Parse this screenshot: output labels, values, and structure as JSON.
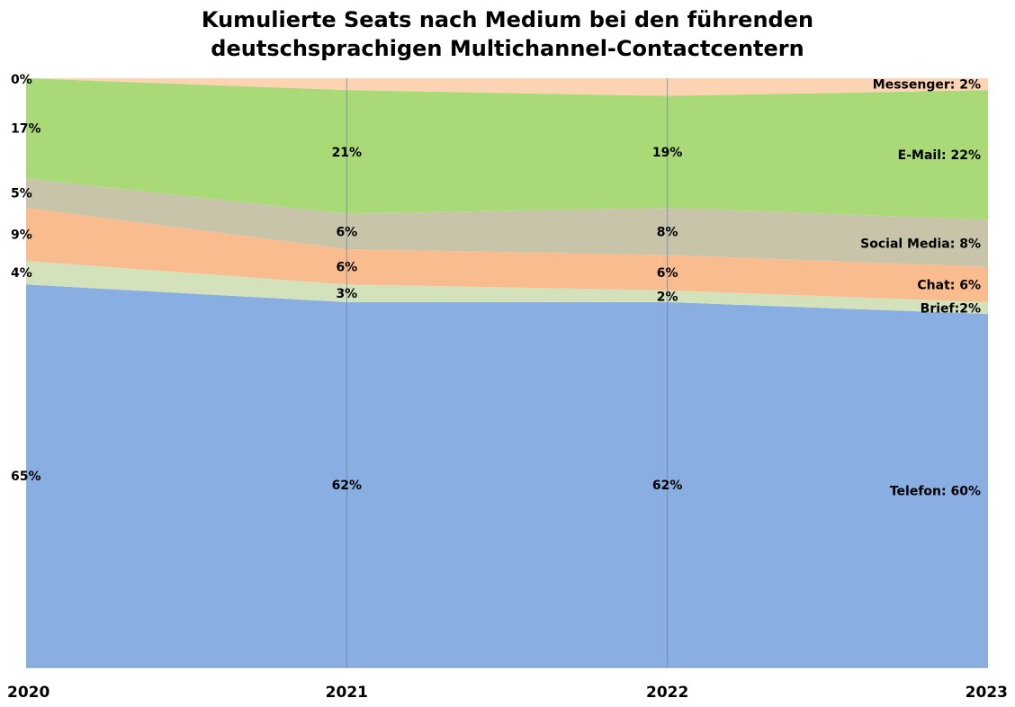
{
  "chart_data": {
    "type": "area",
    "stacked": true,
    "normalized": true,
    "title_lines": [
      "Kumulierte Seats nach Medium bei den führenden",
      "deutschsprachigen Multichannel-Contactcentern"
    ],
    "x": [
      "2020",
      "2021",
      "2022",
      "2023"
    ],
    "ylim": [
      0,
      100
    ],
    "series": [
      {
        "key": "telefon",
        "values": [
          65,
          62,
          62,
          60
        ],
        "color": "#88aee2",
        "labels": [
          "65%",
          "62%",
          "62%",
          "Telefon: 60%"
        ]
      },
      {
        "key": "brief",
        "values": [
          4,
          3,
          2,
          2
        ],
        "color": "#d4e2bc",
        "labels": [
          "4%",
          "3%",
          "2%",
          "Brief:2%"
        ]
      },
      {
        "key": "chat",
        "values": [
          9,
          6,
          6,
          6
        ],
        "color": "#f8bc8e",
        "labels": [
          "9%",
          "6%",
          "6%",
          "Chat: 6%"
        ]
      },
      {
        "key": "social",
        "values": [
          5,
          6,
          8,
          8
        ],
        "color": "#c8c4aa",
        "labels": [
          "5%",
          "6%",
          "8%",
          "Social Media: 8%"
        ]
      },
      {
        "key": "email",
        "values": [
          17,
          21,
          19,
          22
        ],
        "color": "#a9da77",
        "labels": [
          "17%",
          "21%",
          "19%",
          "E-Mail: 22%"
        ]
      },
      {
        "key": "messenger",
        "values": [
          0,
          2,
          3,
          2
        ],
        "color": "#fcd4b4",
        "labels": [
          "0%",
          "",
          "",
          "Messenger: 2%"
        ]
      }
    ]
  }
}
